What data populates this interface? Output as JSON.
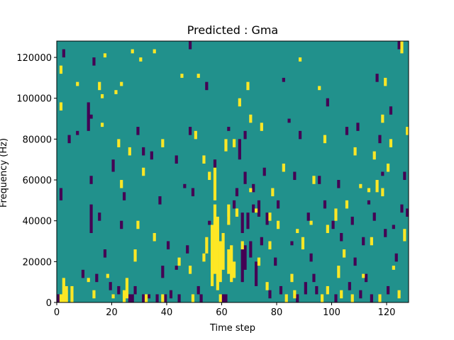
{
  "chart_data": {
    "type": "heatmap",
    "title": "Predicted : Gma",
    "xlabel": "Time step",
    "ylabel": "Frequency (Hz)",
    "xlim": [
      0,
      128
    ],
    "ylim": [
      0,
      128000
    ],
    "xticks": [
      0,
      20,
      40,
      60,
      80,
      100,
      120
    ],
    "yticks": [
      0,
      20000,
      40000,
      60000,
      80000,
      100000,
      120000
    ],
    "colormap": {
      "low": "#440154",
      "mid": "#21918c",
      "high": "#fde725"
    },
    "background_level": "mid",
    "cell_size": {
      "x": 1,
      "y": 2000
    },
    "high_cells": [
      [
        1,
        0,
        4000
      ],
      [
        2,
        0,
        12000
      ],
      [
        3,
        0,
        8000
      ],
      [
        5,
        0,
        8000
      ],
      [
        1,
        94000,
        98000
      ],
      [
        1,
        112000,
        116000
      ],
      [
        7,
        106000,
        108000
      ],
      [
        11,
        10000,
        12000
      ],
      [
        13,
        2000,
        6000
      ],
      [
        15,
        104000,
        108000
      ],
      [
        16,
        100000,
        102000
      ],
      [
        16,
        86000,
        88000
      ],
      [
        17,
        120000,
        122000
      ],
      [
        18,
        12000,
        14000
      ],
      [
        20,
        2000,
        4000
      ],
      [
        21,
        102000,
        104000
      ],
      [
        22,
        76000,
        80000
      ],
      [
        23,
        106000,
        108000
      ],
      [
        23,
        56000,
        60000
      ],
      [
        24,
        0,
        6000
      ],
      [
        25,
        2000,
        12000
      ],
      [
        26,
        72000,
        76000
      ],
      [
        27,
        122000,
        124000
      ],
      [
        28,
        20000,
        26000
      ],
      [
        29,
        36000,
        40000
      ],
      [
        30,
        118000,
        120000
      ],
      [
        31,
        62000,
        66000
      ],
      [
        32,
        0,
        4000
      ],
      [
        35,
        30000,
        34000
      ],
      [
        35,
        122000,
        124000
      ],
      [
        38,
        0,
        4000
      ],
      [
        38,
        76000,
        80000
      ],
      [
        44,
        18000,
        22000
      ],
      [
        45,
        110000,
        112000
      ],
      [
        48,
        14000,
        18000
      ],
      [
        49,
        0,
        4000
      ],
      [
        50,
        80000,
        84000
      ],
      [
        51,
        110000,
        112000
      ],
      [
        53,
        20000,
        24000
      ],
      [
        53,
        68000,
        72000
      ],
      [
        54,
        24000,
        32000
      ],
      [
        55,
        60000,
        64000
      ],
      [
        56,
        8000,
        38000
      ],
      [
        57,
        14000,
        48000
      ],
      [
        57,
        50000,
        66000
      ],
      [
        57,
        22000,
        40000
      ],
      [
        58,
        6000,
        42000
      ],
      [
        58,
        26000,
        36000
      ],
      [
        59,
        0,
        4000
      ],
      [
        59,
        10000,
        30000
      ],
      [
        60,
        16000,
        34000
      ],
      [
        61,
        74000,
        80000
      ],
      [
        62,
        14000,
        26000
      ],
      [
        62,
        38000,
        48000
      ],
      [
        63,
        10000,
        28000
      ],
      [
        64,
        12000,
        20000
      ],
      [
        64,
        76000,
        80000
      ],
      [
        65,
        42000,
        46000
      ],
      [
        66,
        96000,
        100000
      ],
      [
        67,
        26000,
        30000
      ],
      [
        69,
        104000,
        108000
      ],
      [
        70,
        88000,
        92000
      ],
      [
        70,
        54000,
        56000
      ],
      [
        72,
        44000,
        46000
      ],
      [
        73,
        18000,
        22000
      ],
      [
        74,
        84000,
        88000
      ],
      [
        76,
        6000,
        10000
      ],
      [
        77,
        26000,
        30000
      ],
      [
        77,
        40000,
        44000
      ],
      [
        78,
        52000,
        56000
      ],
      [
        80,
        36000,
        40000
      ],
      [
        82,
        64000,
        68000
      ],
      [
        83,
        0,
        4000
      ],
      [
        85,
        10000,
        14000
      ],
      [
        86,
        2000,
        6000
      ],
      [
        87,
        34000,
        36000
      ],
      [
        88,
        118000,
        120000
      ],
      [
        89,
        26000,
        32000
      ],
      [
        92,
        38000,
        40000
      ],
      [
        93,
        58000,
        62000
      ],
      [
        95,
        104000,
        106000
      ],
      [
        96,
        0,
        4000
      ],
      [
        97,
        78000,
        82000
      ],
      [
        98,
        34000,
        38000
      ],
      [
        98,
        4000,
        8000
      ],
      [
        101,
        40000,
        46000
      ],
      [
        102,
        12000,
        18000
      ],
      [
        103,
        2000,
        6000
      ],
      [
        104,
        22000,
        26000
      ],
      [
        105,
        46000,
        50000
      ],
      [
        107,
        0,
        4000
      ],
      [
        108,
        72000,
        76000
      ],
      [
        110,
        56000,
        58000
      ],
      [
        111,
        12000,
        14000
      ],
      [
        113,
        54000,
        56000
      ],
      [
        114,
        28000,
        32000
      ],
      [
        115,
        70000,
        74000
      ],
      [
        116,
        54000,
        60000
      ],
      [
        117,
        0,
        4000
      ],
      [
        118,
        52000,
        56000
      ],
      [
        118,
        88000,
        92000
      ],
      [
        119,
        106000,
        110000
      ],
      [
        120,
        64000,
        68000
      ],
      [
        121,
        76000,
        80000
      ],
      [
        122,
        16000,
        18000
      ],
      [
        124,
        2000,
        6000
      ],
      [
        125,
        122000,
        128000
      ],
      [
        126,
        30000,
        36000
      ],
      [
        127,
        82000,
        86000
      ]
    ],
    "low_cells": [
      [
        0,
        0,
        4000
      ],
      [
        1,
        50000,
        56000
      ],
      [
        2,
        120000,
        124000
      ],
      [
        3,
        6000,
        8000
      ],
      [
        4,
        78000,
        82000
      ],
      [
        7,
        82000,
        84000
      ],
      [
        9,
        12000,
        16000
      ],
      [
        11,
        84000,
        98000
      ],
      [
        12,
        90000,
        92000
      ],
      [
        12,
        58000,
        62000
      ],
      [
        12,
        34000,
        48000
      ],
      [
        13,
        116000,
        120000
      ],
      [
        14,
        10000,
        14000
      ],
      [
        15,
        40000,
        44000
      ],
      [
        17,
        22000,
        26000
      ],
      [
        19,
        6000,
        10000
      ],
      [
        20,
        64000,
        70000
      ],
      [
        22,
        4000,
        8000
      ],
      [
        23,
        36000,
        40000
      ],
      [
        24,
        50000,
        54000
      ],
      [
        26,
        0,
        4000
      ],
      [
        27,
        0,
        4000
      ],
      [
        28,
        4000,
        8000
      ],
      [
        29,
        82000,
        86000
      ],
      [
        31,
        0,
        4000
      ],
      [
        31,
        72000,
        76000
      ],
      [
        33,
        2000,
        4000
      ],
      [
        34,
        70000,
        74000
      ],
      [
        36,
        0,
        4000
      ],
      [
        37,
        48000,
        52000
      ],
      [
        38,
        12000,
        18000
      ],
      [
        39,
        0,
        4000
      ],
      [
        40,
        26000,
        30000
      ],
      [
        41,
        2000,
        6000
      ],
      [
        43,
        16000,
        18000
      ],
      [
        43,
        68000,
        72000
      ],
      [
        44,
        0,
        4000
      ],
      [
        46,
        56000,
        58000
      ],
      [
        47,
        24000,
        28000
      ],
      [
        48,
        82000,
        86000
      ],
      [
        48,
        124000,
        128000
      ],
      [
        49,
        52000,
        56000
      ],
      [
        51,
        4000,
        8000
      ],
      [
        52,
        0,
        4000
      ],
      [
        54,
        104000,
        108000
      ],
      [
        55,
        38000,
        40000
      ],
      [
        57,
        66000,
        70000
      ],
      [
        60,
        0,
        4000
      ],
      [
        61,
        0,
        4000
      ],
      [
        62,
        84000,
        86000
      ],
      [
        62,
        40000,
        42000
      ],
      [
        64,
        46000,
        50000
      ],
      [
        65,
        52000,
        56000
      ],
      [
        66,
        70000,
        80000
      ],
      [
        67,
        10000,
        26000
      ],
      [
        67,
        34000,
        44000
      ],
      [
        68,
        16000,
        28000
      ],
      [
        68,
        58000,
        64000
      ],
      [
        68,
        80000,
        84000
      ],
      [
        69,
        36000,
        44000
      ],
      [
        70,
        22000,
        30000
      ],
      [
        71,
        54000,
        58000
      ],
      [
        71,
        44000,
        48000
      ],
      [
        72,
        8000,
        20000
      ],
      [
        73,
        42000,
        50000
      ],
      [
        74,
        28000,
        32000
      ],
      [
        75,
        62000,
        66000
      ],
      [
        76,
        38000,
        44000
      ],
      [
        77,
        2000,
        6000
      ],
      [
        79,
        18000,
        22000
      ],
      [
        80,
        46000,
        50000
      ],
      [
        81,
        4000,
        8000
      ],
      [
        82,
        108000,
        110000
      ],
      [
        84,
        88000,
        90000
      ],
      [
        85,
        28000,
        30000
      ],
      [
        86,
        60000,
        64000
      ],
      [
        87,
        0,
        4000
      ],
      [
        88,
        80000,
        84000
      ],
      [
        90,
        4000,
        10000
      ],
      [
        91,
        40000,
        44000
      ],
      [
        92,
        20000,
        24000
      ],
      [
        93,
        10000,
        14000
      ],
      [
        94,
        4000,
        8000
      ],
      [
        95,
        58000,
        62000
      ],
      [
        97,
        46000,
        50000
      ],
      [
        98,
        96000,
        100000
      ],
      [
        100,
        36000,
        40000
      ],
      [
        101,
        0,
        4000
      ],
      [
        102,
        56000,
        60000
      ],
      [
        103,
        30000,
        34000
      ],
      [
        105,
        82000,
        86000
      ],
      [
        106,
        6000,
        10000
      ],
      [
        107,
        38000,
        42000
      ],
      [
        108,
        18000,
        22000
      ],
      [
        109,
        84000,
        88000
      ],
      [
        110,
        2000,
        6000
      ],
      [
        111,
        28000,
        32000
      ],
      [
        112,
        10000,
        14000
      ],
      [
        113,
        48000,
        50000
      ],
      [
        114,
        0,
        4000
      ],
      [
        115,
        40000,
        44000
      ],
      [
        116,
        108000,
        112000
      ],
      [
        117,
        78000,
        82000
      ],
      [
        118,
        62000,
        64000
      ],
      [
        119,
        32000,
        36000
      ],
      [
        120,
        4000,
        8000
      ],
      [
        121,
        92000,
        96000
      ],
      [
        122,
        36000,
        38000
      ],
      [
        123,
        20000,
        24000
      ],
      [
        124,
        124000,
        128000
      ],
      [
        125,
        44000,
        48000
      ],
      [
        126,
        60000,
        64000
      ],
      [
        127,
        42000,
        46000
      ]
    ]
  }
}
